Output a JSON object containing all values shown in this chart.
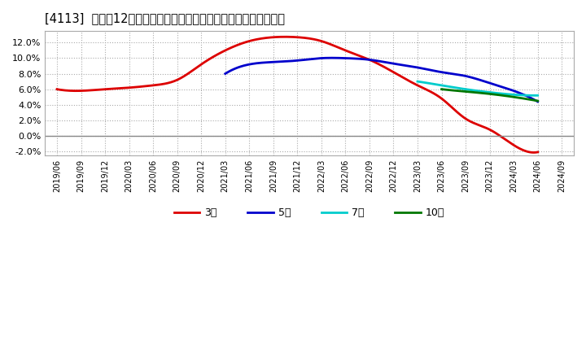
{
  "title": "[4113]  売上高12か月移動合計の対前年同期増減率の平均値の推移",
  "title_fontsize": 10.5,
  "background_color": "#ffffff",
  "plot_bg_color": "#ffffff",
  "grid_color": "#aaaaaa",
  "ylim": [
    -0.025,
    0.135
  ],
  "yticks": [
    -0.02,
    0.0,
    0.02,
    0.04,
    0.06,
    0.08,
    0.1,
    0.12
  ],
  "zero_line_color": "#888888",
  "series": {
    "3年": {
      "color": "#dd0000",
      "linewidth": 2.0,
      "dates": [
        "2019/06",
        "2019/09",
        "2019/12",
        "2020/03",
        "2020/06",
        "2020/09",
        "2020/12",
        "2021/03",
        "2021/06",
        "2021/09",
        "2021/12",
        "2022/03",
        "2022/06",
        "2022/09",
        "2022/12",
        "2023/03",
        "2023/06",
        "2023/09",
        "2023/12",
        "2024/03",
        "2024/06"
      ],
      "values": [
        0.06,
        0.058,
        0.06,
        0.062,
        0.065,
        0.072,
        0.092,
        0.11,
        0.122,
        0.127,
        0.127,
        0.122,
        0.11,
        0.098,
        0.082,
        0.065,
        0.048,
        0.022,
        0.008,
        -0.012,
        -0.021
      ]
    },
    "5年": {
      "color": "#0000cc",
      "linewidth": 2.0,
      "dates": [
        "2021/03",
        "2021/06",
        "2021/09",
        "2021/12",
        "2022/03",
        "2022/06",
        "2022/09",
        "2022/12",
        "2023/03",
        "2023/06",
        "2023/09",
        "2023/12",
        "2024/03",
        "2024/06"
      ],
      "values": [
        0.08,
        0.092,
        0.095,
        0.097,
        0.1,
        0.1,
        0.098,
        0.093,
        0.088,
        0.082,
        0.077,
        0.068,
        0.058,
        0.044
      ]
    },
    "7年": {
      "color": "#00cccc",
      "linewidth": 2.0,
      "dates": [
        "2023/03",
        "2023/06",
        "2023/09",
        "2023/12",
        "2024/03",
        "2024/06"
      ],
      "values": [
        0.07,
        0.065,
        0.06,
        0.056,
        0.053,
        0.052
      ]
    },
    "10年": {
      "color": "#007700",
      "linewidth": 2.0,
      "dates": [
        "2023/06",
        "2023/09",
        "2023/12",
        "2024/03",
        "2024/06"
      ],
      "values": [
        0.06,
        0.057,
        0.054,
        0.05,
        0.045
      ]
    }
  },
  "legend_labels": [
    "3年",
    "5年",
    "7年",
    "10年"
  ],
  "legend_colors": [
    "#dd0000",
    "#0000cc",
    "#00cccc",
    "#007700"
  ],
  "xticklabels": [
    "2019/06",
    "2019/09",
    "2019/12",
    "2020/03",
    "2020/06",
    "2020/09",
    "2020/12",
    "2021/03",
    "2021/06",
    "2021/09",
    "2021/12",
    "2022/03",
    "2022/06",
    "2022/09",
    "2022/12",
    "2023/03",
    "2023/06",
    "2023/09",
    "2023/12",
    "2024/03",
    "2024/06",
    "2024/09"
  ]
}
